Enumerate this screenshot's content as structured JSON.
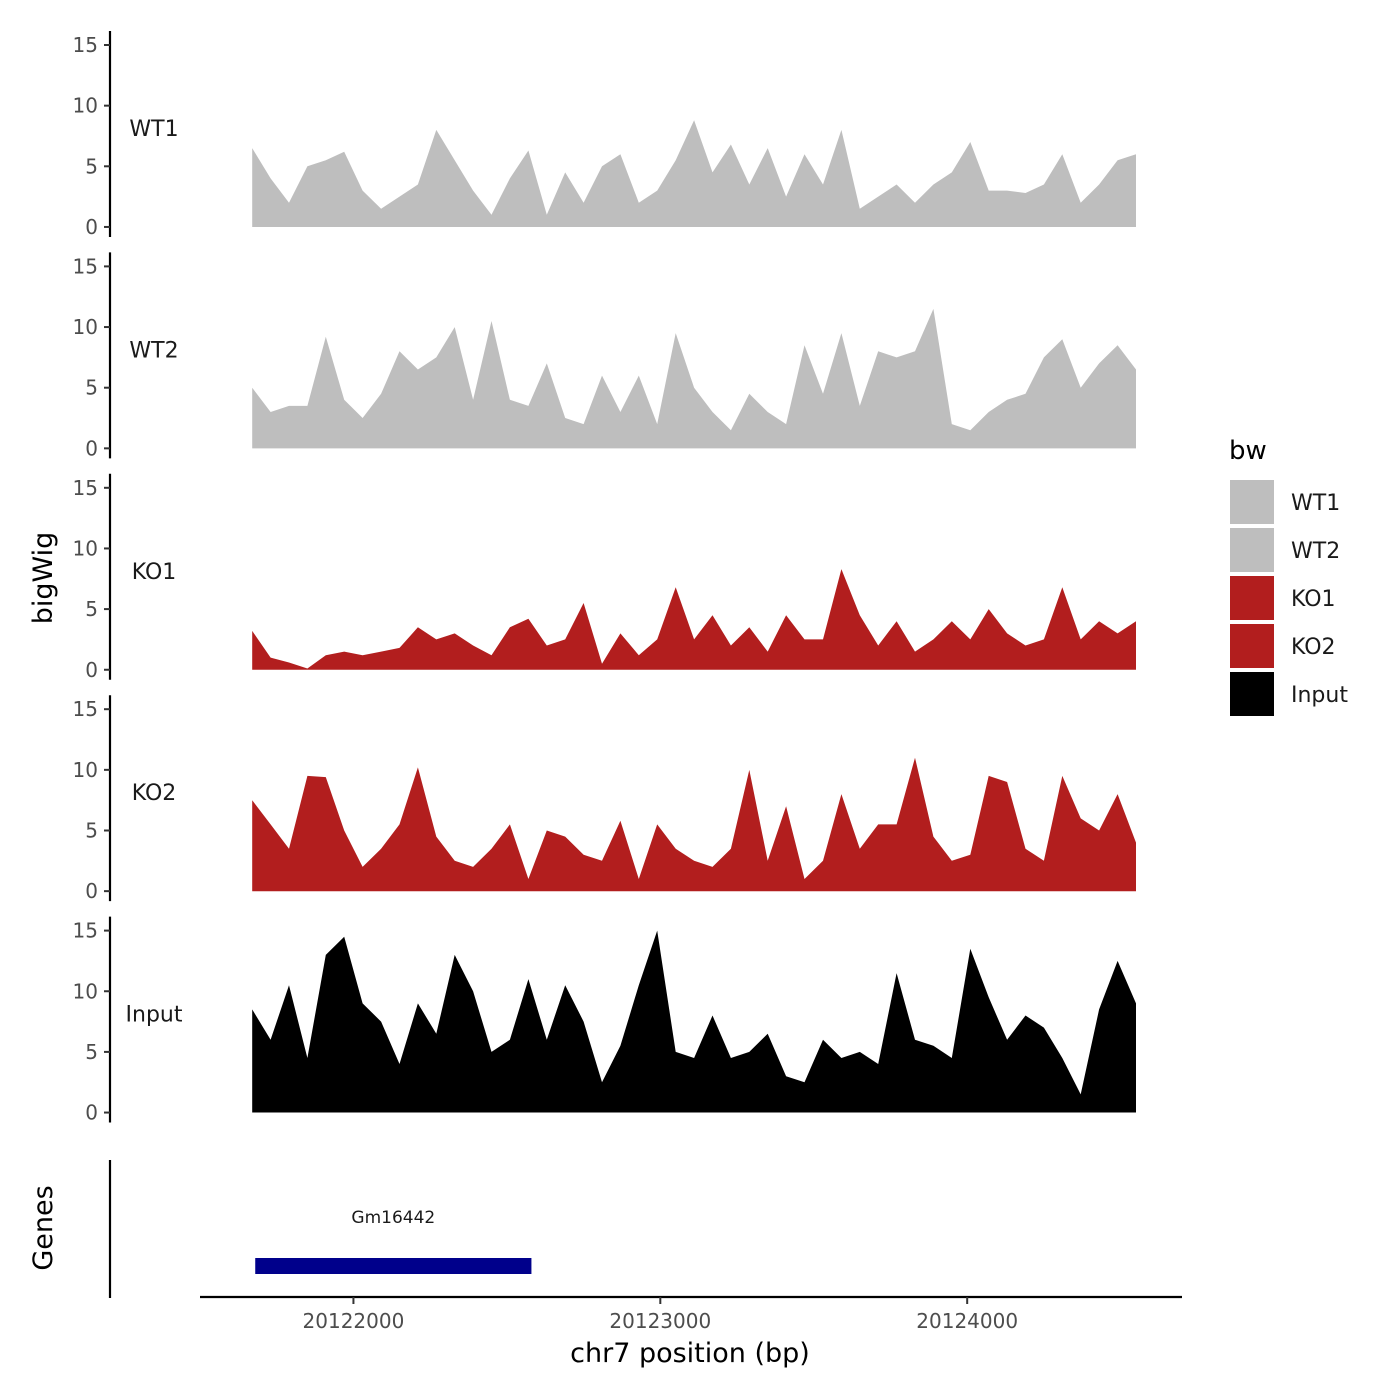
{
  "chart_data": {
    "type": "area",
    "x_axis": {
      "label": "chr7 position (bp)",
      "range": [
        20121500,
        20124700
      ],
      "ticks": [
        20122000,
        20123000,
        20124000
      ],
      "tick_labels": [
        "20122000",
        "20123000",
        "20124000"
      ]
    },
    "y_axis": {
      "label": "bigWig",
      "range": [
        0,
        15
      ],
      "ticks": [
        0,
        5,
        10,
        15
      ],
      "tick_labels": [
        "0",
        "5",
        "10",
        "15"
      ]
    },
    "genes_axis_label": "Genes",
    "x": [
      20121670,
      20121730,
      20121790,
      20121850,
      20121910,
      20121970,
      20122030,
      20122090,
      20122150,
      20122210,
      20122270,
      20122330,
      20122390,
      20122450,
      20122510,
      20122570,
      20122630,
      20122690,
      20122750,
      20122810,
      20122870,
      20122930,
      20122990,
      20123050,
      20123110,
      20123170,
      20123230,
      20123290,
      20123350,
      20123410,
      20123470,
      20123530,
      20123590,
      20123650,
      20123710,
      20123770,
      20123830,
      20123890,
      20123950,
      20124010,
      20124070,
      20124130,
      20124190,
      20124250,
      20124310,
      20124370,
      20124430,
      20124490,
      20124550
    ],
    "series": [
      {
        "name": "WT1",
        "color": "#bebebe",
        "values": [
          6.5,
          4.0,
          2.0,
          5.0,
          5.5,
          6.2,
          3.0,
          1.5,
          2.5,
          3.5,
          8.0,
          5.5,
          3.0,
          1.0,
          4.0,
          6.3,
          1.0,
          4.5,
          2.0,
          5.0,
          6.0,
          2.0,
          3.0,
          5.5,
          8.8,
          4.5,
          6.8,
          3.5,
          6.5,
          2.5,
          6.0,
          3.5,
          8.0,
          1.5,
          2.5,
          3.5,
          2.0,
          3.5,
          4.5,
          7.0,
          3.0,
          3.0,
          2.8,
          3.5,
          6.0,
          2.0,
          3.5,
          5.5,
          6.0
        ]
      },
      {
        "name": "WT2",
        "color": "#bebebe",
        "values": [
          5.0,
          3.0,
          3.5,
          3.5,
          9.2,
          4.0,
          2.5,
          4.5,
          8.0,
          6.5,
          7.5,
          10.0,
          4.0,
          10.5,
          4.0,
          3.5,
          7.0,
          2.5,
          2.0,
          6.0,
          3.0,
          6.0,
          2.0,
          9.5,
          5.0,
          3.0,
          1.5,
          4.5,
          3.0,
          2.0,
          8.5,
          4.5,
          9.5,
          3.5,
          8.0,
          7.5,
          8.0,
          11.5,
          2.0,
          1.5,
          3.0,
          4.0,
          4.5,
          7.5,
          9.0,
          5.0,
          7.0,
          8.5,
          6.5
        ]
      },
      {
        "name": "KO1",
        "color": "#b21e1e",
        "values": [
          3.2,
          1.0,
          0.6,
          0.1,
          1.2,
          1.5,
          1.2,
          1.5,
          1.8,
          3.5,
          2.5,
          3.0,
          2.0,
          1.2,
          3.5,
          4.2,
          2.0,
          2.5,
          5.5,
          0.5,
          3.0,
          1.2,
          2.5,
          6.8,
          2.5,
          4.5,
          2.0,
          3.5,
          1.5,
          4.5,
          2.5,
          2.5,
          8.3,
          4.5,
          2.0,
          4.0,
          1.5,
          2.5,
          4.0,
          2.5,
          5.0,
          3.0,
          2.0,
          2.5,
          6.8,
          2.5,
          4.0,
          3.0,
          4.0
        ]
      },
      {
        "name": "KO2",
        "color": "#b21e1e",
        "values": [
          7.5,
          5.5,
          3.5,
          9.5,
          9.4,
          5.0,
          2.0,
          3.5,
          5.5,
          10.2,
          4.5,
          2.5,
          2.0,
          3.5,
          5.5,
          1.0,
          5.0,
          4.5,
          3.0,
          2.5,
          5.8,
          1.0,
          5.5,
          3.5,
          2.5,
          2.0,
          3.5,
          10.0,
          2.5,
          7.0,
          1.0,
          2.5,
          8.0,
          3.5,
          5.5,
          5.5,
          11.0,
          4.5,
          2.5,
          3.0,
          9.5,
          9.0,
          3.5,
          2.5,
          9.5,
          6.0,
          5.0,
          8.0,
          4.0
        ]
      },
      {
        "name": "Input",
        "color": "#000000",
        "values": [
          8.5,
          6.0,
          10.5,
          4.5,
          13.0,
          14.5,
          9.0,
          7.5,
          4.0,
          9.0,
          6.5,
          13.0,
          10.0,
          5.0,
          6.0,
          11.0,
          6.0,
          10.5,
          7.5,
          2.5,
          5.5,
          10.5,
          15.0,
          5.0,
          4.5,
          8.0,
          4.5,
          5.0,
          6.5,
          3.0,
          2.5,
          6.0,
          4.5,
          5.0,
          4.0,
          11.5,
          6.0,
          5.5,
          4.5,
          13.5,
          9.5,
          6.0,
          8.0,
          7.0,
          4.5,
          1.5,
          8.5,
          12.5,
          9.0
        ]
      }
    ],
    "genes": [
      {
        "name": "Gm16442",
        "start": 20121680,
        "end": 20122580,
        "color": "#00008b"
      }
    ],
    "legend": {
      "title": "bw",
      "position": "right",
      "entries": [
        {
          "label": "WT1",
          "color": "#bebebe"
        },
        {
          "label": "WT2",
          "color": "#bebebe"
        },
        {
          "label": "KO1",
          "color": "#b21e1e"
        },
        {
          "label": "KO2",
          "color": "#b21e1e"
        },
        {
          "label": "Input",
          "color": "#000000"
        }
      ]
    },
    "grid": false
  }
}
